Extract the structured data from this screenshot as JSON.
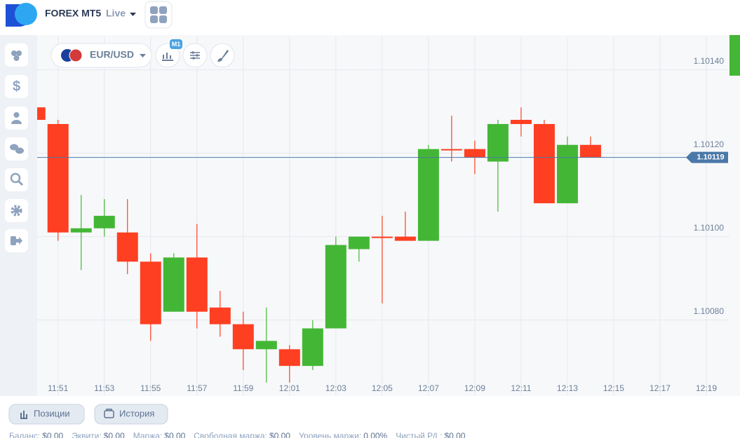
{
  "header": {
    "title": "FOREX MT5",
    "mode": "Live"
  },
  "toolbar": {
    "symbol": "EUR/USD",
    "timeframe": "M1"
  },
  "chart_data": {
    "type": "candlestick",
    "x": [
      710,
      711,
      712,
      713,
      714,
      715,
      716,
      717,
      718,
      719,
      720,
      721,
      722,
      723,
      724,
      725,
      726,
      727,
      728,
      729,
      730,
      731,
      732,
      733,
      734
    ],
    "open": [
      1.10131,
      1.10127,
      1.10101,
      1.10102,
      1.10101,
      1.10094,
      1.10082,
      1.10095,
      1.10083,
      1.10079,
      1.10073,
      1.10073,
      1.10069,
      1.10078,
      1.10097,
      1.101,
      1.101,
      1.10099,
      1.10121,
      1.10121,
      1.10118,
      1.10128,
      1.10127,
      1.10108,
      1.10122
    ],
    "high": [
      1.10131,
      1.10128,
      1.1011,
      1.10109,
      1.10109,
      1.10096,
      1.10096,
      1.10103,
      1.10087,
      1.10082,
      1.10083,
      1.10074,
      1.1008,
      1.101,
      1.101,
      1.10105,
      1.10106,
      1.10122,
      1.10129,
      1.10123,
      1.10128,
      1.10131,
      1.10128,
      1.10124,
      1.10124
    ],
    "low": [
      1.10128,
      1.10099,
      1.10092,
      1.101,
      1.10091,
      1.10075,
      1.10082,
      1.10078,
      1.10076,
      1.10068,
      1.10065,
      1.10065,
      1.10068,
      1.10078,
      1.10094,
      1.10084,
      1.10099,
      1.10099,
      1.10118,
      1.10115,
      1.10106,
      1.10124,
      1.10108,
      1.10108,
      1.10119
    ],
    "close": [
      1.10128,
      1.10101,
      1.10102,
      1.10105,
      1.10094,
      1.10079,
      1.10095,
      1.10082,
      1.10079,
      1.10073,
      1.10075,
      1.10069,
      1.10078,
      1.10098,
      1.101,
      1.101,
      1.10099,
      1.10121,
      1.10121,
      1.10119,
      1.10127,
      1.10127,
      1.10108,
      1.10122,
      1.10119
    ],
    "up_color": "#43b735",
    "down_color": "#fe3f22",
    "xlim": [
      710.1,
      740
    ],
    "xticks": [
      {
        "value": 711,
        "label": "11:51"
      },
      {
        "value": 713,
        "label": "11:53"
      },
      {
        "value": 715,
        "label": "11:55"
      },
      {
        "value": 717,
        "label": "11:57"
      },
      {
        "value": 719,
        "label": "11:59"
      },
      {
        "value": 721,
        "label": "12:01"
      },
      {
        "value": 723,
        "label": "12:03"
      },
      {
        "value": 725,
        "label": "12:05"
      },
      {
        "value": 727,
        "label": "12:07"
      },
      {
        "value": 729,
        "label": "12:09"
      },
      {
        "value": 731,
        "label": "12:11"
      },
      {
        "value": 733,
        "label": "12:13"
      },
      {
        "value": 735,
        "label": "12:15"
      },
      {
        "value": 737,
        "label": "12:17"
      },
      {
        "value": 739,
        "label": "12:19"
      }
    ],
    "ylim": [
      1.10066,
      1.10148
    ],
    "yticks": [
      {
        "value": 1.1008,
        "label": "1.10080"
      },
      {
        "value": 1.101,
        "label": "1.10100"
      },
      {
        "value": 1.1012,
        "label": "1.10120"
      },
      {
        "value": 1.1014,
        "label": "1.10140"
      }
    ],
    "grid": true,
    "current_price": 1.10119,
    "current_price_color": "#4a78a8"
  },
  "tabs": [
    "Позиции",
    "История"
  ],
  "footer": [
    {
      "label": "Баланс:",
      "value": "$0.00"
    },
    {
      "label": "Эквити:",
      "value": "$0.00"
    },
    {
      "label": "Маржа:",
      "value": "$0.00"
    },
    {
      "label": "Свободная маржа:",
      "value": "$0.00"
    },
    {
      "label": "Уровень маржи:",
      "value": "0.00%"
    },
    {
      "label": "Чистый P/L:",
      "value": "$0.00"
    }
  ]
}
